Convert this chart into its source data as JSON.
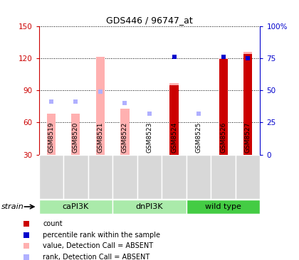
{
  "title": "GDS446 / 96747_at",
  "samples": [
    "GSM8519",
    "GSM8520",
    "GSM8521",
    "GSM8522",
    "GSM8523",
    "GSM8524",
    "GSM8525",
    "GSM8526",
    "GSM8527"
  ],
  "value_absent": [
    68,
    68,
    121,
    73,
    null,
    97,
    null,
    120,
    126
  ],
  "rank_absent": [
    41,
    41,
    49,
    40,
    32,
    null,
    32,
    null,
    null
  ],
  "count_present": [
    null,
    null,
    null,
    null,
    null,
    95,
    null,
    119,
    124
  ],
  "rank_present": [
    null,
    null,
    null,
    null,
    null,
    76,
    null,
    76,
    75
  ],
  "small_rank_absent_idx": [
    4,
    6
  ],
  "small_rank_absent_val": [
    32,
    32
  ],
  "ylim_left": [
    30,
    150
  ],
  "ylim_right": [
    0,
    100
  ],
  "yticks_left": [
    30,
    60,
    90,
    120,
    150
  ],
  "yticks_right": [
    0,
    25,
    50,
    75,
    100
  ],
  "background_color": "#ffffff",
  "color_count": "#cc0000",
  "color_rank_present": "#0000cc",
  "color_value_absent": "#ffb0b0",
  "color_rank_absent": "#b0b0ff",
  "color_left_axis": "#cc0000",
  "color_right_axis": "#0000cc",
  "caPI3K_color": "#aaeaaa",
  "dnPI3K_color": "#aaeaaa",
  "wildtype_color": "#44cc44",
  "group_names": [
    "caPI3K",
    "dnPI3K",
    "wild type"
  ],
  "group_ranges": [
    [
      0,
      3
    ],
    [
      3,
      6
    ],
    [
      6,
      9
    ]
  ],
  "legend_items": [
    {
      "color": "#cc0000",
      "label": "count"
    },
    {
      "color": "#0000cc",
      "label": "percentile rank within the sample"
    },
    {
      "color": "#ffb0b0",
      "label": "value, Detection Call = ABSENT"
    },
    {
      "color": "#b0b0ff",
      "label": "rank, Detection Call = ABSENT"
    }
  ]
}
